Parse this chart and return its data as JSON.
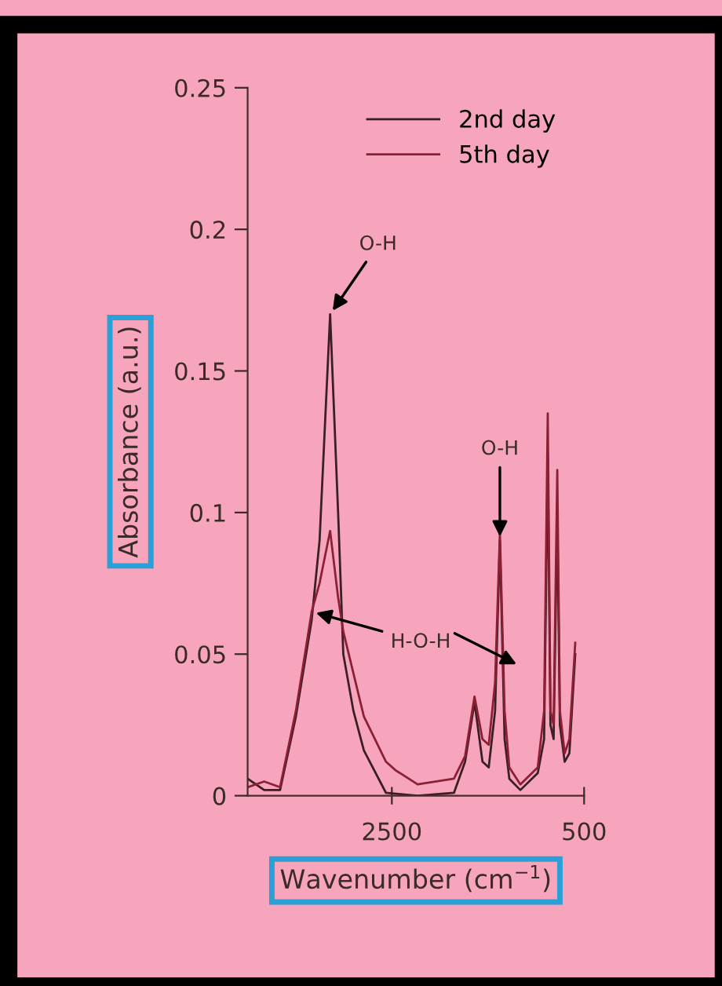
{
  "chart_data": {
    "type": "line",
    "xlabel": "Wavenumber (cm$^{−1}$)",
    "ylabel": "Absorbance (a.u.)",
    "xlim": [
      4000,
      500
    ],
    "xticks": [
      2500,
      500
    ],
    "ylim": [
      0,
      0.25
    ],
    "yticks": [
      0,
      0.05,
      0.1,
      0.15,
      0.2,
      0.25
    ],
    "grid": false,
    "legend": "top right",
    "marker": "none",
    "line_style": "solid",
    "series": [
      {
        "name": "2nd day",
        "color": "#3b1f24",
        "x": [
          4000,
          3828,
          3663,
          3498,
          3334,
          3252,
          3142,
          3059,
          3005,
          2900,
          2791,
          2561,
          2232,
          1854,
          1738,
          1640,
          1557,
          1492,
          1426,
          1376,
          1327,
          1278,
          1163,
          982,
          916,
          878,
          850,
          817,
          779,
          752,
          702,
          653,
          592
        ],
        "values": [
          0.006,
          0.002,
          0.002,
          0.028,
          0.062,
          0.09,
          0.17,
          0.1,
          0.05,
          0.03,
          0.016,
          0.001,
          0.0,
          0.001,
          0.012,
          0.033,
          0.012,
          0.01,
          0.03,
          0.09,
          0.02,
          0.006,
          0.002,
          0.008,
          0.02,
          0.12,
          0.025,
          0.02,
          0.1,
          0.025,
          0.012,
          0.015,
          0.05
        ]
      },
      {
        "name": "5th day",
        "color": "#8b2035",
        "x": [
          4000,
          3828,
          3663,
          3498,
          3334,
          3252,
          3142,
          3059,
          3005,
          2791,
          2561,
          2462,
          2232,
          1854,
          1738,
          1640,
          1557,
          1492,
          1426,
          1376,
          1327,
          1278,
          1163,
          982,
          916,
          878,
          850,
          817,
          779,
          752,
          702,
          653,
          592
        ],
        "values": [
          0.003,
          0.005,
          0.003,
          0.03,
          0.065,
          0.075,
          0.0935,
          0.07,
          0.058,
          0.028,
          0.012,
          0.009,
          0.004,
          0.006,
          0.014,
          0.035,
          0.02,
          0.018,
          0.04,
          0.093,
          0.03,
          0.01,
          0.004,
          0.01,
          0.03,
          0.135,
          0.03,
          0.025,
          0.115,
          0.03,
          0.015,
          0.02,
          0.054
        ]
      }
    ],
    "annotations": [
      {
        "text": "O-H",
        "x": 3142,
        "y": 0.17
      },
      {
        "text": "O-H",
        "x": 1376,
        "y": 0.09
      },
      {
        "text": "H-O-H",
        "x": 3334,
        "y": 0.065
      }
    ]
  }
}
